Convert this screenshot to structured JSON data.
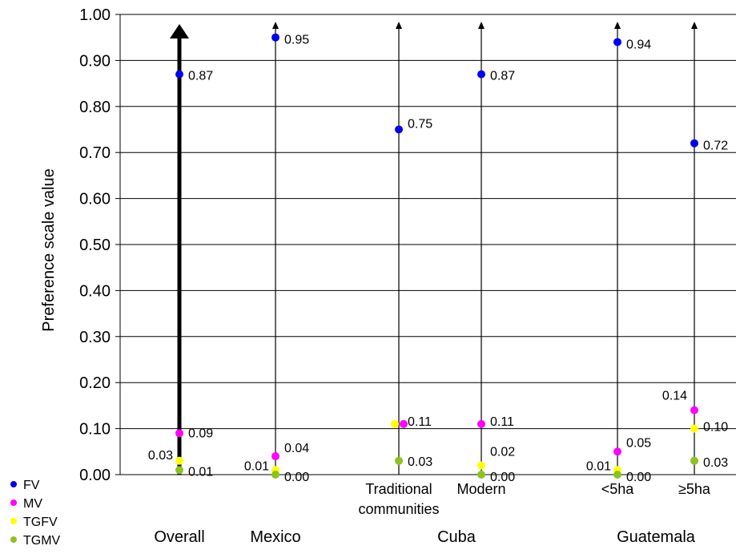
{
  "chart_data": {
    "type": "scatter",
    "title": "",
    "ylabel": "Preference scale value",
    "xlabel": "",
    "ylim": [
      0,
      1
    ],
    "yticks": [
      "0.00",
      "0.10",
      "0.20",
      "0.30",
      "0.40",
      "0.50",
      "0.60",
      "0.70",
      "0.80",
      "0.90",
      "1.00"
    ],
    "grid": true,
    "legend_position": "bottom-left",
    "categories": [
      {
        "label": "",
        "group": "Overall"
      },
      {
        "label": "",
        "group": "Mexico"
      },
      {
        "label": "Traditional communities",
        "label_lines": [
          "Traditional",
          "communities"
        ],
        "group": "Cuba"
      },
      {
        "label": "Modern",
        "label_lines": [
          "Modern"
        ],
        "group": "Cuba"
      },
      {
        "label": "<5ha",
        "label_lines": [
          "<5ha"
        ],
        "group": "Guatemala"
      },
      {
        "label": "≥5ha",
        "label_lines": [
          "≥5ha"
        ],
        "group": "Guatemala"
      }
    ],
    "groups": [
      "Overall",
      "Mexico",
      "Cuba",
      "Guatemala"
    ],
    "series": [
      {
        "name": "FV",
        "color": "#0000ee",
        "values": [
          0.87,
          0.95,
          0.75,
          0.87,
          0.94,
          0.72
        ],
        "labels": [
          "0.87",
          "0.95",
          "0.75",
          "0.87",
          "0.94",
          "0.72"
        ]
      },
      {
        "name": "MV",
        "color": "#ff00ff",
        "values": [
          0.09,
          0.04,
          0.11,
          0.11,
          0.05,
          0.14
        ],
        "labels": [
          "0.09",
          "0.04",
          "0.11",
          "0.11",
          "0.05",
          "0.14"
        ]
      },
      {
        "name": "TGFV",
        "color": "#ffff00",
        "values": [
          0.03,
          0.01,
          0.11,
          0.02,
          0.01,
          0.1
        ],
        "labels": [
          "0.03",
          "0.01",
          "",
          "0.02",
          "0.01",
          "0.10"
        ]
      },
      {
        "name": "TGMV",
        "color": "#8dc21f",
        "values": [
          0.01,
          0.0,
          0.03,
          0.0,
          0.0,
          0.03
        ],
        "labels": [
          "0.01",
          "0.00",
          "0.03",
          "0.00",
          "0.00",
          "0.03"
        ]
      }
    ]
  }
}
